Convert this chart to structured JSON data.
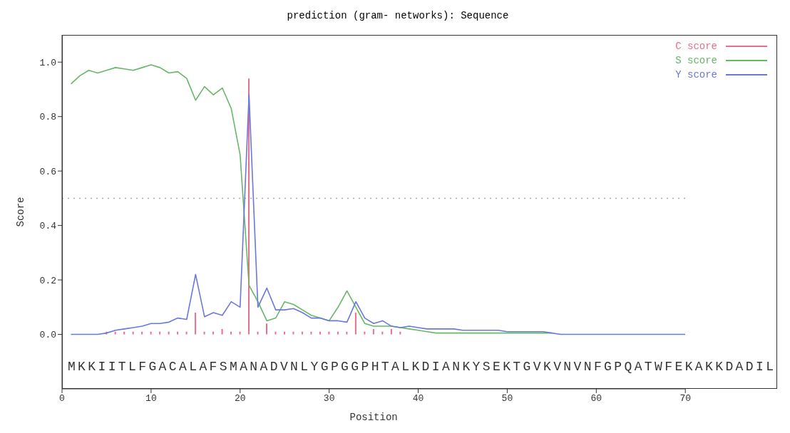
{
  "chart_data": {
    "type": "line",
    "title": "prediction (gram- networks): Sequence",
    "xlabel": "Position",
    "ylabel": "Score",
    "x": [
      1,
      2,
      3,
      4,
      5,
      6,
      7,
      8,
      9,
      10,
      11,
      12,
      13,
      14,
      15,
      16,
      17,
      18,
      19,
      20,
      21,
      22,
      23,
      24,
      25,
      26,
      27,
      28,
      29,
      30,
      31,
      32,
      33,
      34,
      35,
      36,
      37,
      38,
      39,
      40,
      41,
      42,
      43,
      44,
      45,
      46,
      47,
      48,
      49,
      50,
      51,
      52,
      53,
      54,
      55,
      56,
      57,
      58,
      59,
      60,
      61,
      62,
      63,
      64,
      65,
      66,
      67,
      68,
      69,
      70
    ],
    "series": [
      {
        "name": "C score",
        "type": "bar",
        "color": "#e8708a",
        "values": [
          0,
          0,
          0,
          0,
          0.01,
          0.01,
          0.01,
          0.01,
          0.01,
          0.01,
          0.01,
          0.01,
          0.01,
          0.01,
          0.08,
          0.01,
          0.01,
          0.02,
          0.01,
          0.01,
          0.94,
          0.01,
          0.04,
          0.01,
          0.01,
          0.01,
          0.01,
          0.01,
          0.01,
          0.01,
          0.01,
          0.01,
          0.08,
          0.01,
          0.02,
          0.01,
          0.02,
          0.01,
          0,
          0,
          0,
          0,
          0,
          0,
          0,
          0,
          0,
          0,
          0,
          0,
          0,
          0,
          0,
          0,
          0,
          0,
          0,
          0,
          0,
          0,
          0,
          0,
          0,
          0,
          0,
          0,
          0,
          0,
          0,
          0
        ]
      },
      {
        "name": "S score",
        "color": "#66b866",
        "values": [
          0.92,
          0.95,
          0.97,
          0.96,
          0.97,
          0.98,
          0.975,
          0.97,
          0.98,
          0.99,
          0.98,
          0.96,
          0.965,
          0.94,
          0.86,
          0.91,
          0.88,
          0.905,
          0.83,
          0.66,
          0.18,
          0.12,
          0.05,
          0.06,
          0.12,
          0.11,
          0.09,
          0.07,
          0.06,
          0.05,
          0.1,
          0.16,
          0.1,
          0.04,
          0.03,
          0.03,
          0.03,
          0.025,
          0.02,
          0.015,
          0.01,
          0.005,
          0.005,
          0.005,
          0.005,
          0.005,
          0.005,
          0.005,
          0.005,
          0.005,
          0.005,
          0.005,
          0.005,
          0.005,
          0.005,
          null,
          null,
          null,
          null,
          null,
          null,
          null,
          null,
          null,
          null,
          null,
          null,
          null,
          null,
          null
        ]
      },
      {
        "name": "Y score",
        "color": "#6a78dd",
        "values": [
          0,
          0,
          0,
          0,
          0.005,
          0.015,
          0.02,
          0.025,
          0.03,
          0.04,
          0.04,
          0.045,
          0.06,
          0.055,
          0.22,
          0.065,
          0.08,
          0.07,
          0.12,
          0.1,
          0.88,
          0.1,
          0.17,
          0.09,
          0.09,
          0.095,
          0.08,
          0.06,
          0.06,
          0.05,
          0.05,
          0.045,
          0.12,
          0.06,
          0.04,
          0.05,
          0.03,
          0.025,
          0.03,
          0.025,
          0.02,
          0.02,
          0.02,
          0.02,
          0.015,
          0.015,
          0.015,
          0.015,
          0.015,
          0.01,
          0.01,
          0.01,
          0.01,
          0.01,
          0.005,
          0,
          0,
          0,
          0,
          0,
          0,
          0,
          0,
          0,
          0,
          0,
          0,
          0,
          0,
          0
        ]
      }
    ],
    "annotations": [
      "MKKIITLFGACALAFSMANADVNLYGPGGPHTALKDIANKYSEKTGVKVNVNFGPQATWFEKAKKDADIL"
    ],
    "xlim": [
      0,
      70
    ],
    "xticks": [
      0,
      10,
      20,
      30,
      40,
      50,
      60,
      70
    ],
    "ylim": [
      -0.2,
      1.1
    ],
    "yticks": [
      {
        "value": 0,
        "label": "0.0"
      },
      {
        "value": 0.2,
        "label": "0.2"
      },
      {
        "value": 0.4,
        "label": "0.4"
      },
      {
        "value": 0.6,
        "label": "0.6"
      },
      {
        "value": 0.8,
        "label": "0.8"
      },
      {
        "value": 1,
        "label": "1.0"
      }
    ],
    "ref_lines": [
      {
        "axis": "y",
        "value": 0.5,
        "color": "#aaaaaa",
        "line_style": "dotted"
      }
    ],
    "legend": "top right",
    "marker": "none",
    "line_style": "solid",
    "grid": false
  }
}
